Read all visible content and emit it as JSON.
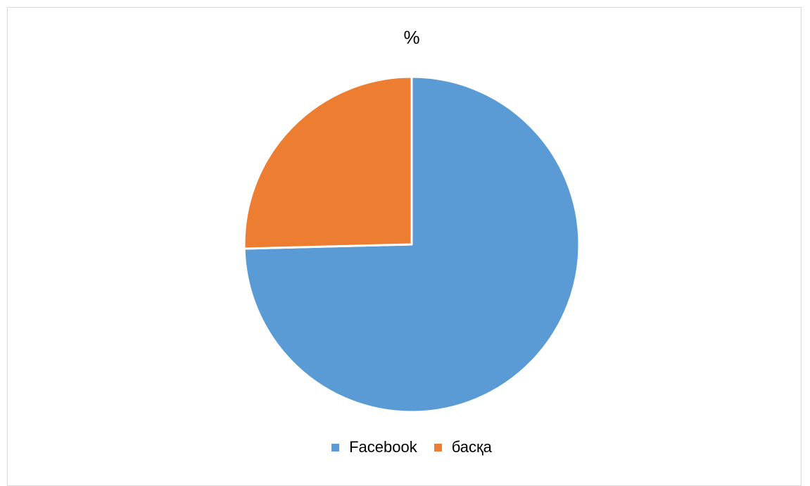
{
  "chart_data": {
    "type": "pie",
    "title": "%",
    "categories": [
      "Facebook",
      "басқа"
    ],
    "values": [
      74.6,
      25.4
    ],
    "colors": [
      "#5b9bd5",
      "#ed7d31"
    ],
    "start_angle_deg": 0,
    "direction": "clockwise",
    "legend_position": "bottom"
  }
}
